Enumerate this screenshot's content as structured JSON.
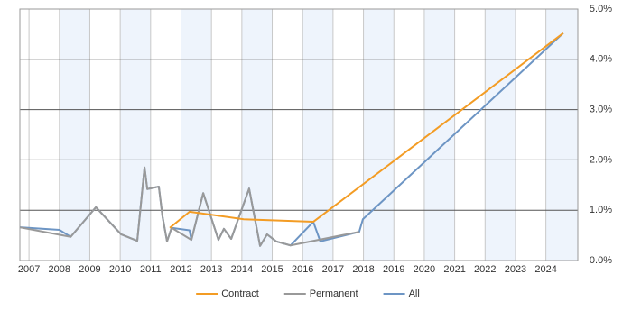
{
  "chart_data": {
    "type": "line",
    "xlim": [
      2006.7,
      2025.05
    ],
    "xticks": [
      2007,
      2008,
      2009,
      2010,
      2011,
      2012,
      2013,
      2014,
      2015,
      2016,
      2017,
      2018,
      2019,
      2020,
      2021,
      2022,
      2023,
      2024
    ],
    "ylim": [
      0,
      5
    ],
    "yticks": [
      {
        "value": 0,
        "label": "0.0%"
      },
      {
        "value": 1,
        "label": "1.0%"
      },
      {
        "value": 2,
        "label": "2.0%"
      },
      {
        "value": 3,
        "label": "3.0%"
      },
      {
        "value": 4,
        "label": "4.0%"
      },
      {
        "value": 5,
        "label": "5.0%"
      }
    ],
    "y_axis_side": "right",
    "grid": true,
    "band_color": "#eef4fc",
    "legend": "bottom",
    "series": [
      {
        "name": "Contract",
        "color": "#f39c24",
        "x": [
          2011.63,
          2012.28,
          2014.06,
          2016.35,
          2024.57
        ],
        "values": [
          0.65,
          0.97,
          0.82,
          0.77,
          4.52
        ]
      },
      {
        "name": "Permanent",
        "color": "#999999",
        "x": [
          2006.7,
          2008.37,
          2009.2,
          2010.03,
          2010.56,
          2010.8,
          2010.89,
          2011.27,
          2011.39,
          2011.54,
          2011.69,
          2012.34,
          2012.73,
          2013.23,
          2013.41,
          2013.65,
          2014.24,
          2014.6,
          2014.83,
          2015.13,
          2015.6,
          2017.86
        ],
        "values": [
          0.66,
          0.47,
          1.06,
          0.52,
          0.39,
          1.85,
          1.42,
          1.47,
          0.88,
          0.38,
          0.65,
          0.41,
          1.34,
          0.41,
          0.63,
          0.43,
          1.43,
          0.29,
          0.52,
          0.38,
          0.3,
          0.57
        ]
      },
      {
        "name": "All",
        "color": "#6d95c4",
        "x": [
          2006.7,
          2008.0,
          2008.37,
          2009.2,
          2010.03,
          2010.56,
          2010.8,
          2010.89,
          2011.27,
          2011.39,
          2011.54,
          2011.69,
          2012.28,
          2012.34,
          2012.73,
          2013.23,
          2013.41,
          2013.65,
          2014.24,
          2014.6,
          2014.83,
          2015.13,
          2015.6,
          2016.35,
          2016.58,
          2017.86,
          2017.98,
          2024.57
        ],
        "values": [
          0.66,
          0.61,
          0.47,
          1.06,
          0.52,
          0.39,
          1.85,
          1.42,
          1.47,
          0.88,
          0.38,
          0.65,
          0.6,
          0.41,
          1.34,
          0.41,
          0.63,
          0.43,
          1.43,
          0.29,
          0.52,
          0.38,
          0.3,
          0.77,
          0.38,
          0.57,
          0.82,
          4.52
        ]
      }
    ]
  }
}
